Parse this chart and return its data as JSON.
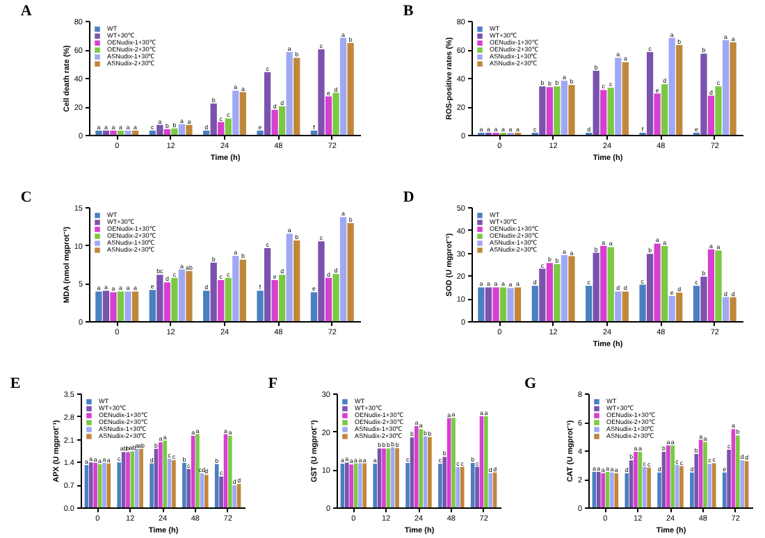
{
  "chart_data": [
    {
      "type": "bar",
      "title": "A",
      "xlabel": "Time (h)",
      "ylabel": "Cell death rate (%)",
      "categories": [
        "0",
        "12",
        "24",
        "48",
        "72"
      ],
      "ylim": [
        0,
        80
      ],
      "yticks": [
        0,
        20,
        40,
        60,
        80
      ],
      "grid": false,
      "legend": "top left",
      "series": [
        {
          "name": "WT",
          "color": "#4a7fc1",
          "values": [
            3,
            3,
            3,
            3,
            3
          ],
          "value_labels": [
            "a",
            "c",
            "d",
            "e",
            "f"
          ]
        },
        {
          "name": "WT+30℃",
          "color": "#7b52ae",
          "values": [
            3,
            7,
            22,
            44,
            60
          ],
          "value_labels": [
            "a",
            "a",
            "b",
            "c",
            "c"
          ]
        },
        {
          "name": "OENudix-1+30℃",
          "color": "#d63fd0",
          "values": [
            3,
            4,
            9,
            17.5,
            27
          ],
          "value_labels": [
            "a",
            "b",
            "c",
            "d",
            "e"
          ]
        },
        {
          "name": "OENudix-2+30℃",
          "color": "#7ac943",
          "values": [
            3,
            4.5,
            11.5,
            20,
            29.5
          ],
          "value_labels": [
            "a",
            "b",
            "c",
            "d",
            "d"
          ]
        },
        {
          "name": "ASNudix-1+30℃",
          "color": "#9fa8f5",
          "values": [
            3,
            7.5,
            31,
            58,
            68
          ],
          "value_labels": [
            "a",
            "a",
            "a",
            "a",
            "a"
          ]
        },
        {
          "name": "ASNudix-2+30℃",
          "color": "#c0873a",
          "values": [
            3,
            7,
            30,
            54,
            64.5
          ],
          "value_labels": [
            "a",
            "a",
            "a",
            "b",
            "b"
          ]
        }
      ]
    },
    {
      "type": "bar",
      "title": "B",
      "xlabel": "Time (h)",
      "ylabel": "ROS-positive rates (%)",
      "categories": [
        "0",
        "12",
        "24",
        "48",
        "72"
      ],
      "ylim": [
        0,
        80
      ],
      "yticks": [
        0,
        20,
        40,
        60,
        80
      ],
      "grid": false,
      "legend": "top left",
      "series": [
        {
          "name": "WT",
          "color": "#4a7fc1",
          "values": [
            1.5,
            1.5,
            1.5,
            1.5,
            1.5
          ],
          "value_labels": [
            "a",
            "c",
            "d",
            "f",
            "e"
          ]
        },
        {
          "name": "WT+30℃",
          "color": "#7b52ae",
          "values": [
            1.5,
            34,
            45,
            58,
            57
          ],
          "value_labels": [
            "a",
            "b",
            "b",
            "c",
            "b"
          ]
        },
        {
          "name": "OENudix-1+30℃",
          "color": "#d63fd0",
          "values": [
            1.5,
            33.5,
            31.5,
            29,
            27.5
          ],
          "value_labels": [
            "a",
            "b",
            "c",
            "e",
            "d"
          ]
        },
        {
          "name": "OENudix-2+30℃",
          "color": "#7ac943",
          "values": [
            1.5,
            34,
            33,
            35.5,
            34
          ],
          "value_labels": [
            "a",
            "b",
            "c",
            "d",
            "c"
          ]
        },
        {
          "name": "ASNudix-1+30℃",
          "color": "#9fa8f5",
          "values": [
            1.5,
            38,
            54,
            68,
            66.5
          ],
          "value_labels": [
            "a",
            "a",
            "a",
            "a",
            "a"
          ]
        },
        {
          "name": "ASNudix-2+30℃",
          "color": "#c0873a",
          "values": [
            1.5,
            35,
            51,
            63,
            65
          ],
          "value_labels": [
            "a",
            "b",
            "a",
            "b",
            "a"
          ]
        }
      ]
    },
    {
      "type": "bar",
      "title": "C",
      "ylabel": "MDA (nmol mgprot⁻¹)",
      "categories": [
        "0",
        "12",
        "24",
        "48",
        "72"
      ],
      "ylim": [
        0,
        15
      ],
      "yticks": [
        0,
        5,
        10,
        15
      ],
      "grid": false,
      "legend": "top left",
      "series": [
        {
          "name": "WT",
          "color": "#4a7fc1",
          "values": [
            3.9,
            4.1,
            4.0,
            4.0,
            3.8
          ],
          "value_labels": [
            "a",
            "e",
            "d",
            "f",
            "e"
          ]
        },
        {
          "name": "WT+30℃",
          "color": "#7b52ae",
          "values": [
            4.0,
            6.1,
            7.7,
            9.6,
            10.5
          ],
          "value_labels": [
            "a",
            "bc",
            "b",
            "c",
            "c"
          ]
        },
        {
          "name": "OENudix-1+30℃",
          "color": "#d63fd0",
          "values": [
            3.8,
            5.1,
            5.4,
            5.4,
            5.7
          ],
          "value_labels": [
            "a",
            "d",
            "c",
            "e",
            "d"
          ]
        },
        {
          "name": "OENudix-2+30℃",
          "color": "#7ac943",
          "values": [
            3.9,
            5.7,
            5.7,
            6.1,
            6.2
          ],
          "value_labels": [
            "a",
            "c",
            "c",
            "d",
            "d"
          ]
        },
        {
          "name": "ASNudix-1+30℃",
          "color": "#9fa8f5",
          "values": [
            3.9,
            6.8,
            8.6,
            11.5,
            13.7
          ],
          "value_labels": [
            "a",
            "a",
            "a",
            "a",
            "a"
          ]
        },
        {
          "name": "ASNudix-2+30℃",
          "color": "#c0873a",
          "values": [
            3.9,
            6.6,
            8.1,
            10.6,
            12.9
          ],
          "value_labels": [
            "a",
            "ab",
            "b",
            "b",
            "b"
          ]
        }
      ]
    },
    {
      "type": "bar",
      "title": "D",
      "xlabel": "Time (h)",
      "ylabel": "SOD (U mgprot⁻¹)",
      "categories": [
        "0",
        "12",
        "24",
        "48",
        "72"
      ],
      "ylim": [
        0,
        50
      ],
      "yticks": [
        0,
        10,
        20,
        30,
        40,
        50
      ],
      "grid": false,
      "legend": "top left",
      "series": [
        {
          "name": "WT",
          "color": "#4a7fc1",
          "values": [
            14.8,
            15.5,
            15.5,
            16,
            15.5
          ],
          "value_labels": [
            "a",
            "d",
            "c",
            "c",
            "c"
          ]
        },
        {
          "name": "WT+30℃",
          "color": "#7b52ae",
          "values": [
            14.8,
            23,
            30,
            29.5,
            19.5
          ],
          "value_labels": [
            "a",
            "c",
            "b",
            "b",
            "b"
          ]
        },
        {
          "name": "OENudix-1+30℃",
          "color": "#d63fd0",
          "values": [
            14.8,
            25.5,
            33,
            34,
            31.5
          ],
          "value_labels": [
            "a",
            "b",
            "a",
            "a",
            "a"
          ]
        },
        {
          "name": "OENudix-2+30℃",
          "color": "#7ac943",
          "values": [
            14.8,
            25,
            32.5,
            33,
            31
          ],
          "value_labels": [
            "a",
            "b",
            "a",
            "a",
            "a"
          ]
        },
        {
          "name": "ASNudix-1+30℃",
          "color": "#9fa8f5",
          "values": [
            14.5,
            29,
            13,
            11,
            10.5
          ],
          "value_labels": [
            "a",
            "a",
            "d",
            "e",
            "d"
          ]
        },
        {
          "name": "ASNudix-2+30℃",
          "color": "#c0873a",
          "values": [
            14.8,
            28.5,
            13,
            12.5,
            10.5
          ],
          "value_labels": [
            "a",
            "a",
            "d",
            "d",
            "d"
          ]
        }
      ]
    },
    {
      "type": "bar",
      "title": "E",
      "xlabel": "Time (h)",
      "ylabel": "APX (U mgprot⁻¹)",
      "categories": [
        "0",
        "12",
        "24",
        "48",
        "72"
      ],
      "ylim": [
        0,
        3.5
      ],
      "yticks": [
        {
          "value": 0,
          "label": "0.0"
        },
        0.7,
        1.4,
        2.1,
        2.8,
        3.5
      ],
      "grid": false,
      "legend": "top left",
      "series": [
        {
          "name": "WT",
          "color": "#4a7fc1",
          "values": [
            1.3,
            1.38,
            1.35,
            1.37,
            1.33
          ],
          "value_labels": [
            "a",
            "c",
            "d",
            "b",
            "b"
          ]
        },
        {
          "name": "WT+30℃",
          "color": "#7b52ae",
          "values": [
            1.38,
            1.7,
            1.8,
            1.18,
            0.95
          ],
          "value_labels": [
            "a",
            "ab",
            "b",
            "c",
            "c"
          ]
        },
        {
          "name": "OENudix-1+30℃",
          "color": "#d63fd0",
          "values": [
            1.37,
            1.7,
            2.0,
            2.2,
            2.25
          ],
          "value_labels": [
            "a",
            "b",
            "a",
            "a",
            "a"
          ]
        },
        {
          "name": "OENudix-2+30℃",
          "color": "#7ac943",
          "values": [
            1.33,
            1.72,
            2.05,
            2.25,
            2.2
          ],
          "value_labels": [
            "a",
            "ab",
            "a",
            "a",
            "a"
          ]
        },
        {
          "name": "ASNudix-1+30℃",
          "color": "#9fa8f5",
          "values": [
            1.37,
            1.8,
            1.5,
            1.05,
            0.68
          ],
          "value_labels": [
            "a",
            "a",
            "c",
            "cd",
            "d"
          ]
        },
        {
          "name": "ASNudix-2+30℃",
          "color": "#c0873a",
          "values": [
            1.35,
            1.8,
            1.45,
            1.0,
            0.72
          ],
          "value_labels": [
            "a",
            "ab",
            "c",
            "d",
            "d"
          ]
        }
      ]
    },
    {
      "type": "bar",
      "title": "F",
      "xlabel": "Time (h)",
      "ylabel": "GST (U mgprot⁻¹)",
      "categories": [
        "0",
        "12",
        "24",
        "48",
        "72"
      ],
      "ylim": [
        0,
        30
      ],
      "yticks": [
        0,
        10,
        20,
        30
      ],
      "grid": false,
      "legend": "top left",
      "series": [
        {
          "name": "WT",
          "color": "#4a7fc1",
          "values": [
            11.5,
            11.5,
            11.7,
            11.5,
            11.7
          ],
          "value_labels": [
            "a",
            "a",
            "c",
            "c",
            "b"
          ]
        },
        {
          "name": "WT+30℃",
          "color": "#7b52ae",
          "values": [
            11.8,
            15.5,
            18.4,
            13.3,
            10.7
          ],
          "value_labels": [
            "a",
            "b",
            "b",
            "b",
            "c"
          ]
        },
        {
          "name": "OENudix-1+30℃",
          "color": "#d63fd0",
          "values": [
            11.3,
            15.5,
            21.4,
            23.5,
            24
          ],
          "value_labels": [
            "a",
            "b",
            "a",
            "a",
            "a"
          ]
        },
        {
          "name": "OENudix-2+30℃",
          "color": "#7ac943",
          "values": [
            11.6,
            15.5,
            20.6,
            23.6,
            24
          ],
          "value_labels": [
            "a",
            "b",
            "a",
            "a",
            "a"
          ]
        },
        {
          "name": "ASNudix-1+30℃",
          "color": "#9fa8f5",
          "values": [
            11.6,
            15.8,
            18.7,
            10.6,
            9
          ],
          "value_labels": [
            "a",
            "b",
            "b",
            "c",
            "d"
          ]
        },
        {
          "name": "ASNudix-2+30℃",
          "color": "#c0873a",
          "values": [
            11.6,
            15.6,
            18.5,
            10.7,
            9.2
          ],
          "value_labels": [
            "a",
            "b",
            "b",
            "c",
            "d"
          ]
        }
      ]
    },
    {
      "type": "bar",
      "title": "G",
      "xlabel": "Time (h)",
      "ylabel": "CAT (U mgprot⁻¹)",
      "categories": [
        "0",
        "12",
        "24",
        "48",
        "72"
      ],
      "ylim": [
        0,
        8
      ],
      "yticks": [
        0,
        2,
        4,
        6,
        8
      ],
      "grid": false,
      "legend": "top left",
      "series": [
        {
          "name": "WT",
          "color": "#4a7fc1",
          "values": [
            2.5,
            2.4,
            2.45,
            2.45,
            2.45
          ],
          "value_labels": [
            "a",
            "d",
            "d",
            "d",
            "e"
          ]
        },
        {
          "name": "WT+30℃",
          "color": "#7b52ae",
          "values": [
            2.5,
            3.3,
            3.9,
            3.75,
            4.05
          ],
          "value_labels": [
            "a",
            "b",
            "b",
            "b",
            "c"
          ]
        },
        {
          "name": "OENudix-1+30℃",
          "color": "#d63fd0",
          "values": [
            2.4,
            3.9,
            4.35,
            4.75,
            5.5
          ],
          "value_labels": [
            "a",
            "a",
            "a",
            "a",
            "a"
          ]
        },
        {
          "name": "OENudix-2+30℃",
          "color": "#7ac943",
          "values": [
            2.5,
            3.9,
            4.35,
            4.6,
            5.05
          ],
          "value_labels": [
            "a",
            "a",
            "a",
            "a",
            "b"
          ]
        },
        {
          "name": "ASNudix-1+30℃",
          "color": "#9fa8f5",
          "values": [
            2.45,
            2.85,
            3.0,
            3.05,
            3.3
          ],
          "value_labels": [
            "a",
            "c",
            "c",
            "c",
            "d"
          ]
        },
        {
          "name": "ASNudix-2+30℃",
          "color": "#c0873a",
          "values": [
            2.4,
            2.8,
            2.9,
            3.1,
            3.25
          ],
          "value_labels": [
            "a",
            "c",
            "c",
            "c",
            "d"
          ]
        }
      ]
    }
  ]
}
